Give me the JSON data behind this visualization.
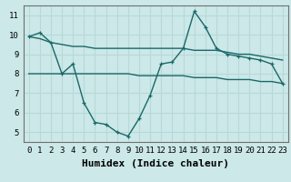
{
  "xlabel": "Humidex (Indice chaleur)",
  "bg_color": "#cce8e8",
  "grid_color": "#b8d8d8",
  "line_color": "#1a6868",
  "xlim": [
    -0.5,
    23.5
  ],
  "ylim": [
    4.5,
    11.5
  ],
  "yticks": [
    5,
    6,
    7,
    8,
    9,
    10,
    11
  ],
  "xticks": [
    0,
    1,
    2,
    3,
    4,
    5,
    6,
    7,
    8,
    9,
    10,
    11,
    12,
    13,
    14,
    15,
    16,
    17,
    18,
    19,
    20,
    21,
    22,
    23
  ],
  "series_main": {
    "x": [
      0,
      1,
      2,
      3,
      4,
      5,
      6,
      7,
      8,
      9,
      10,
      11,
      12,
      13,
      14,
      15,
      16,
      17,
      18,
      19,
      20,
      21,
      22,
      23
    ],
    "y": [
      9.9,
      10.1,
      9.6,
      8.0,
      8.5,
      6.5,
      5.5,
      5.4,
      5.0,
      4.8,
      5.7,
      6.9,
      8.5,
      8.6,
      9.3,
      11.2,
      10.4,
      9.3,
      9.0,
      8.9,
      8.8,
      8.7,
      8.5,
      7.5
    ]
  },
  "series_upper": {
    "x": [
      0,
      1,
      2,
      3,
      4,
      5,
      6,
      7,
      8,
      9,
      10,
      11,
      12,
      13,
      14,
      15,
      16,
      17,
      18,
      19,
      20,
      21,
      22,
      23
    ],
    "y": [
      9.9,
      9.8,
      9.6,
      9.5,
      9.4,
      9.4,
      9.3,
      9.3,
      9.3,
      9.3,
      9.3,
      9.3,
      9.3,
      9.3,
      9.3,
      9.2,
      9.2,
      9.2,
      9.1,
      9.0,
      9.0,
      8.9,
      8.8,
      8.7
    ]
  },
  "series_lower": {
    "x": [
      0,
      1,
      2,
      3,
      4,
      5,
      6,
      7,
      8,
      9,
      10,
      11,
      12,
      13,
      14,
      15,
      16,
      17,
      18,
      19,
      20,
      21,
      22,
      23
    ],
    "y": [
      8.0,
      8.0,
      8.0,
      8.0,
      8.0,
      8.0,
      8.0,
      8.0,
      8.0,
      8.0,
      7.9,
      7.9,
      7.9,
      7.9,
      7.9,
      7.8,
      7.8,
      7.8,
      7.7,
      7.7,
      7.7,
      7.6,
      7.6,
      7.5
    ]
  },
  "font_family": "monospace",
  "xlabel_fontsize": 8,
  "tick_fontsize": 6.5
}
